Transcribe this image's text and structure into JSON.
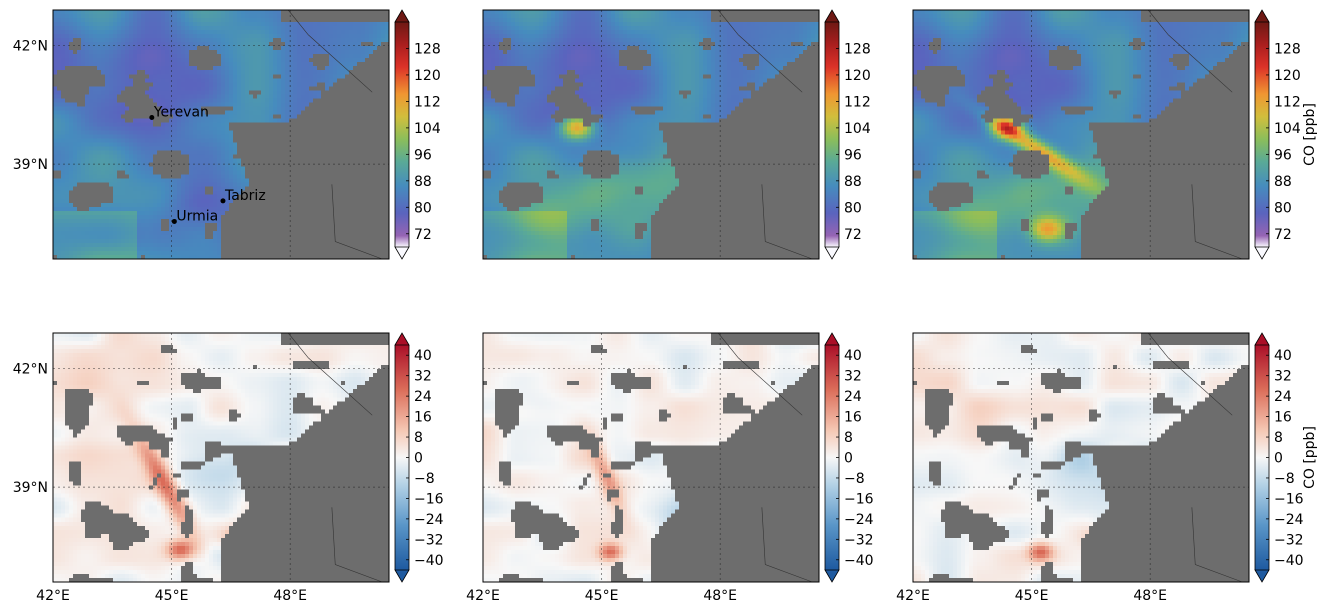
{
  "chart_data": {
    "type": "heatmap",
    "layout": "2 rows x 3 columns of maps",
    "lon_ticks": [
      "42°E",
      "45°E",
      "48°E"
    ],
    "lat_ticks": [
      "42°N",
      "39°N"
    ],
    "extent": {
      "lon": [
        42,
        50.5
      ],
      "lat": [
        36.6,
        42.9
      ]
    },
    "grid": "dotted",
    "land_masked_color": "#6d6d6d",
    "cities": [
      {
        "name": "Yerevan",
        "lon": 44.5,
        "lat": 40.18
      },
      {
        "name": "Tabriz",
        "lon": 46.3,
        "lat": 38.07
      },
      {
        "name": "Urmia",
        "lon": 45.07,
        "lat": 37.55
      }
    ],
    "rows": [
      {
        "row": "top",
        "colorbar": {
          "label": "CO [ppb]",
          "ticks": [
            "128",
            "120",
            "112",
            "104",
            "96",
            "88",
            "80",
            "72"
          ],
          "range": [
            68,
            136
          ],
          "colormap": "spectral (purple-blue-green-yellow-orange-red-darkred)",
          "extend": "both"
        },
        "panels": [
          {
            "index": 1,
            "max_value_region": "NW, purple band ~76 ppb",
            "hotspots": []
          },
          {
            "index": 2,
            "hotspots": [
              {
                "lon": 45.0,
                "lat": 40.2,
                "value": 120
              },
              {
                "lon": 46.0,
                "lat": 38.0,
                "value": 102
              }
            ]
          },
          {
            "index": 3,
            "hotspots": [
              {
                "lon": 44.9,
                "lat": 40.2,
                "value": 122
              },
              {
                "lon": 46.0,
                "lat": 39.2,
                "value": 114
              },
              {
                "lon": 45.3,
                "lat": 37.5,
                "value": 112
              }
            ]
          }
        ]
      },
      {
        "row": "bottom",
        "colorbar": {
          "label": "CO [ppb]",
          "ticks": [
            "40",
            "32",
            "24",
            "16",
            "8",
            "0",
            "−8",
            "−16",
            "−24",
            "−32",
            "−40"
          ],
          "range": [
            -44,
            44
          ],
          "colormap": "RdBu_r (blue-white-red)",
          "extend": "both"
        },
        "panels": [
          {
            "index": 4,
            "hotspots": [
              {
                "lon": 45.0,
                "lat": 39.8,
                "value": 30
              },
              {
                "lon": 45.1,
                "lat": 37.3,
                "value": 34
              }
            ]
          },
          {
            "index": 5,
            "hotspots": [
              {
                "lon": 45.0,
                "lat": 39.7,
                "value": 20
              },
              {
                "lon": 45.0,
                "lat": 37.3,
                "value": 30
              }
            ]
          },
          {
            "index": 6,
            "hotspots": [
              {
                "lon": 45.0,
                "lat": 37.3,
                "value": 26
              }
            ]
          }
        ]
      }
    ]
  }
}
